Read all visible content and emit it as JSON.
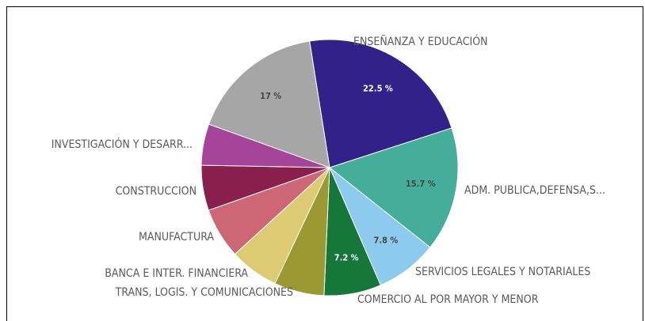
{
  "chart_data": {
    "type": "pie",
    "categories": [
      "ENSEÑANZA Y EDUCACIÓN",
      "ADM. PUBLICA,DEFENSA,S...",
      "SERVICIOS LEGALES Y NOTARIALES",
      "COMERCIO AL POR MAYOR Y MENOR",
      "TRANS, LOGIS. Y COMUNICACIONES",
      "BANCA E INTER. FINANCIERA",
      "MANUFACTURA",
      "CONSTRUCCION",
      "INVESTIGACIÓN Y DESARR...",
      null
    ],
    "values": [
      22.5,
      15.7,
      7.8,
      7.2,
      6.3,
      6.2,
      6.4,
      5.7,
      5.2,
      17
    ],
    "value_labels": [
      "22.5 %",
      "15.7 %",
      "7.8 %",
      "7.2 %",
      null,
      null,
      null,
      null,
      null,
      "17 %"
    ],
    "colors": [
      "#33218a",
      "#45ae9b",
      "#8ccbee",
      "#15773a",
      "#9b9a32",
      "#dccb72",
      "#cd6776",
      "#891f4d",
      "#a6449a",
      "#a6a6a6"
    ]
  }
}
